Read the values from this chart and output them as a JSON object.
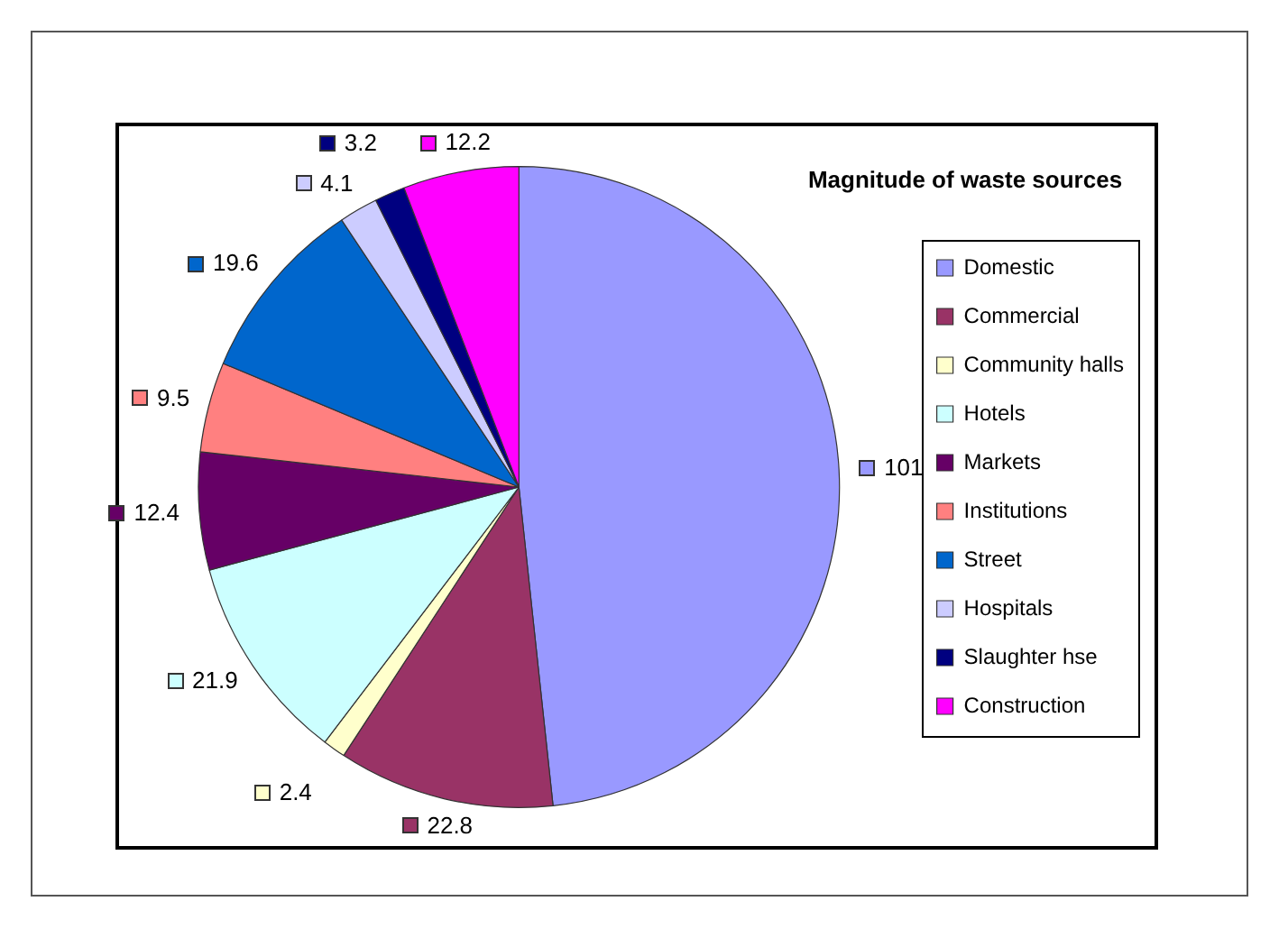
{
  "chart_data": {
    "type": "pie",
    "title": "Magnitude of waste sources",
    "categories": [
      "Domestic",
      "Commercial",
      "Community halls",
      "Hotels",
      "Markets",
      "Institutions",
      "Street",
      "Hospitals",
      "Slaughter hse",
      "Construction"
    ],
    "values": [
      101,
      22.8,
      2.4,
      21.9,
      12.4,
      9.5,
      19.6,
      4.1,
      3.2,
      12.2
    ],
    "colors": [
      "#9999ff",
      "#993366",
      "#ffffcc",
      "#ccffff",
      "#660066",
      "#ff8080",
      "#0066cc",
      "#ccccff",
      "#000080",
      "#ff00ff"
    ],
    "data_labels": true,
    "legend": "right"
  }
}
